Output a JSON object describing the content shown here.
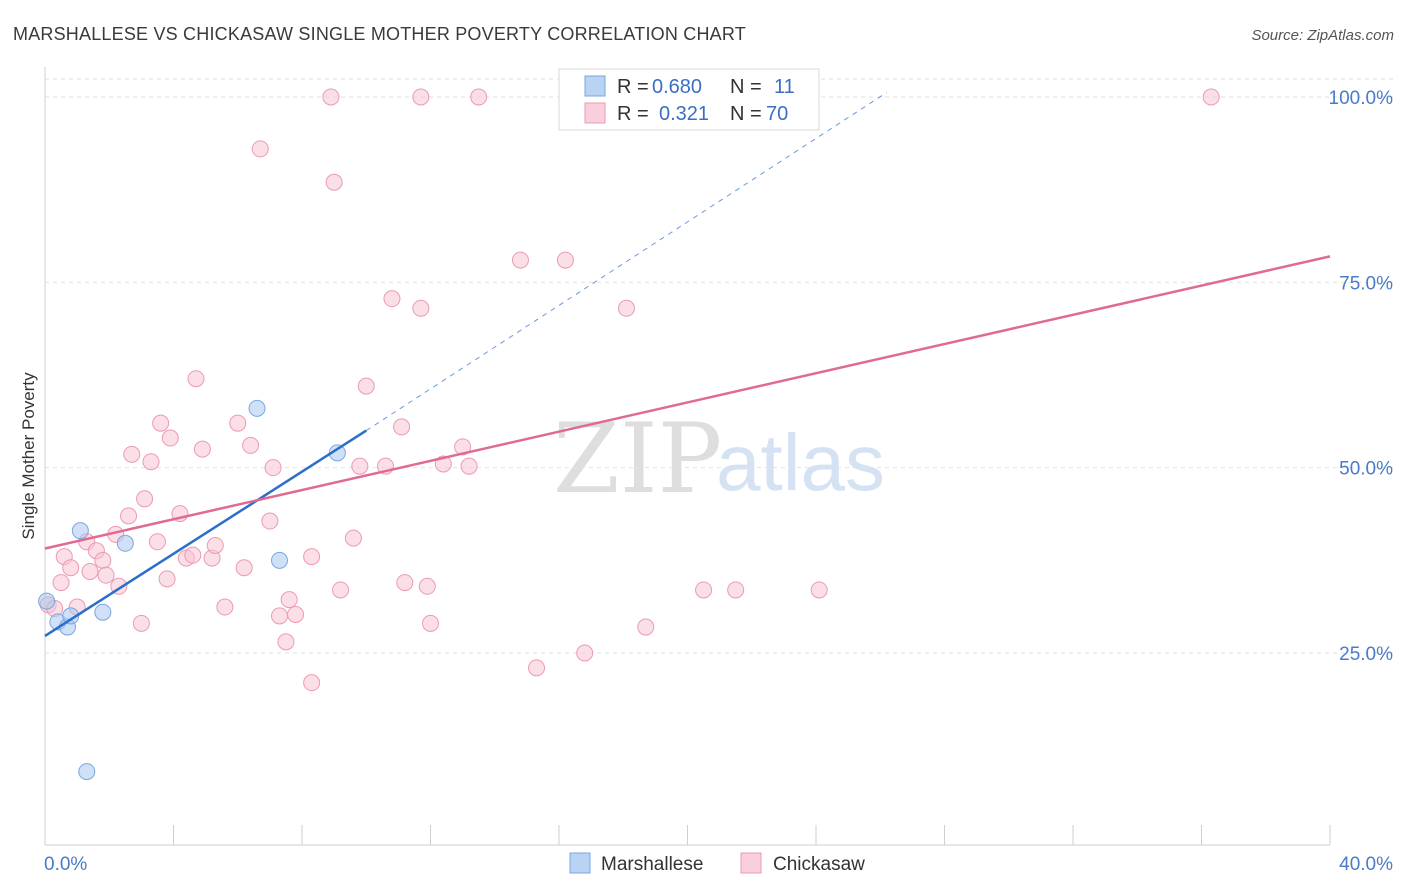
{
  "chart_data": {
    "type": "scatter",
    "title": "MARSHALLESE VS CHICKASAW SINGLE MOTHER POVERTY CORRELATION CHART",
    "source": "Source: ZipAtlas.com",
    "xlabel": "",
    "ylabel": "Single Mother Poverty",
    "xlim": [
      0,
      40
    ],
    "ylim": [
      0,
      104
    ],
    "x_tick_labels": {
      "min": "0.0%",
      "max": "40.0%"
    },
    "y_ticks": [
      {
        "value": 25,
        "label": "25.0%"
      },
      {
        "value": 50,
        "label": "50.0%"
      },
      {
        "value": 75,
        "label": "75.0%"
      },
      {
        "value": 100,
        "label": "100.0%"
      }
    ],
    "grid": true,
    "watermark": {
      "zip": "ZIP",
      "atlas": "atlas"
    },
    "legend": {
      "entries": [
        {
          "r_label": "R =",
          "r_value": "0.680",
          "n_label": "N =",
          "n_value": "11"
        },
        {
          "r_label": "R =",
          "r_value": "0.321",
          "n_label": "N =",
          "n_value": "70"
        }
      ]
    },
    "series": [
      {
        "name": "Marshallese",
        "color": "#a9c8f0",
        "stroke": "#7aa6de",
        "line_color": "#2b6fcb",
        "trend": {
          "x0": 0,
          "y0": 27.3,
          "x1": 10,
          "y1": 55,
          "dash_to_x": 26.2,
          "dash_to_y": 100.6
        },
        "points": [
          [
            0.05,
            32
          ],
          [
            0.4,
            29.2
          ],
          [
            0.7,
            28.5
          ],
          [
            0.8,
            30
          ],
          [
            1.1,
            41.5
          ],
          [
            1.8,
            30.5
          ],
          [
            2.5,
            39.8
          ],
          [
            6.6,
            58
          ],
          [
            7.3,
            37.5
          ],
          [
            9.1,
            52
          ],
          [
            1.3,
            9
          ]
        ]
      },
      {
        "name": "Chickasaw",
        "color": "#f7c5d4",
        "stroke": "#ec9ab3",
        "line_color": "#e06a93",
        "trend": {
          "x0": 0,
          "y0": 39.1,
          "x1": 40,
          "y1": 78.5
        },
        "points": [
          [
            0.1,
            31.5
          ],
          [
            0.3,
            31
          ],
          [
            0.5,
            34.5
          ],
          [
            0.6,
            38
          ],
          [
            0.8,
            36.5
          ],
          [
            1.0,
            31.2
          ],
          [
            1.3,
            40
          ],
          [
            1.4,
            36
          ],
          [
            1.6,
            38.8
          ],
          [
            1.8,
            37.5
          ],
          [
            1.9,
            35.5
          ],
          [
            2.2,
            41
          ],
          [
            2.3,
            34
          ],
          [
            2.6,
            43.5
          ],
          [
            2.7,
            51.8
          ],
          [
            3.0,
            29
          ],
          [
            3.1,
            45.8
          ],
          [
            3.3,
            50.8
          ],
          [
            3.5,
            40
          ],
          [
            3.6,
            56
          ],
          [
            3.8,
            35
          ],
          [
            3.9,
            54
          ],
          [
            4.2,
            43.8
          ],
          [
            4.4,
            37.8
          ],
          [
            4.6,
            38.2
          ],
          [
            4.7,
            62
          ],
          [
            4.9,
            52.5
          ],
          [
            5.2,
            37.8
          ],
          [
            5.3,
            39.5
          ],
          [
            5.6,
            31.2
          ],
          [
            6.0,
            56
          ],
          [
            6.2,
            36.5
          ],
          [
            6.4,
            53
          ],
          [
            6.7,
            93
          ],
          [
            7.0,
            42.8
          ],
          [
            7.1,
            50
          ],
          [
            7.3,
            30
          ],
          [
            7.5,
            26.5
          ],
          [
            7.6,
            32.2
          ],
          [
            7.8,
            30.2
          ],
          [
            8.3,
            38
          ],
          [
            8.3,
            21
          ],
          [
            8.9,
            100
          ],
          [
            9.0,
            88.5
          ],
          [
            9.2,
            33.5
          ],
          [
            9.6,
            40.5
          ],
          [
            9.8,
            50.2
          ],
          [
            10.0,
            61
          ],
          [
            10.6,
            50.2
          ],
          [
            10.8,
            72.8
          ],
          [
            11.1,
            55.5
          ],
          [
            11.2,
            34.5
          ],
          [
            11.7,
            71.5
          ],
          [
            11.7,
            100
          ],
          [
            11.9,
            34
          ],
          [
            12.0,
            29
          ],
          [
            12.4,
            50.5
          ],
          [
            13.0,
            52.8
          ],
          [
            13.2,
            50.2
          ],
          [
            13.5,
            100
          ],
          [
            14.8,
            78
          ],
          [
            15.3,
            23
          ],
          [
            16.2,
            78
          ],
          [
            16.8,
            25
          ],
          [
            18.1,
            71.5
          ],
          [
            18.7,
            28.5
          ],
          [
            20.5,
            33.5
          ],
          [
            21.5,
            33.5
          ],
          [
            24.1,
            33.5
          ],
          [
            36.3,
            100
          ]
        ]
      }
    ]
  }
}
